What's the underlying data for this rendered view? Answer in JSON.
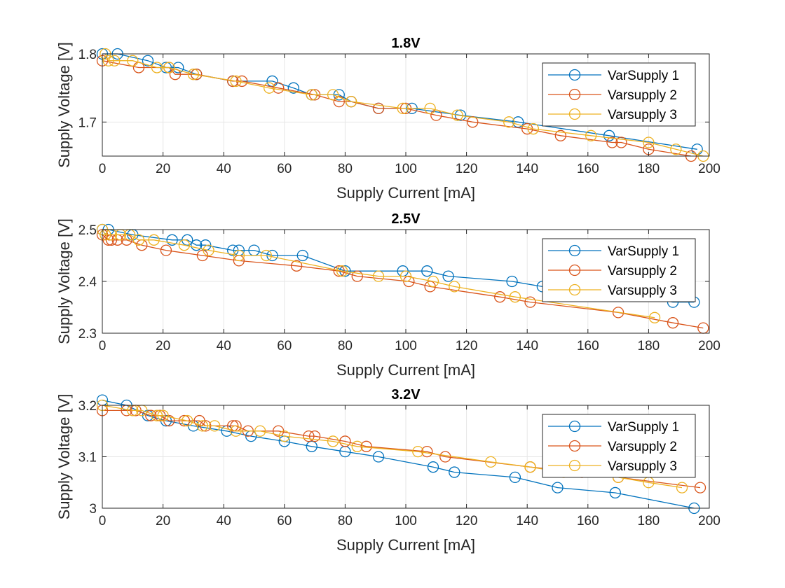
{
  "colors": {
    "series1": "#0072BD",
    "series2": "#D95319",
    "series3": "#EDB120",
    "grid": "#e6e6e6",
    "axis": "#262626"
  },
  "chart_data": [
    {
      "type": "line",
      "title": "1.8V",
      "xlabel": "Supply Current [mA]",
      "ylabel": "Supply Voltage [V]",
      "xlim": [
        0,
        200
      ],
      "ylim": [
        1.65,
        1.8
      ],
      "xticks": [
        "0",
        "20",
        "40",
        "60",
        "80",
        "100",
        "120",
        "140",
        "160",
        "180",
        "200"
      ],
      "yticks": [
        "1.7",
        "1.8"
      ],
      "grid": true,
      "legend_position": "top-right",
      "marker": "circle",
      "series": [
        {
          "name": "VarSupply 1",
          "x": [
            0,
            5,
            15,
            21,
            25,
            31,
            43,
            56,
            63,
            69,
            78,
            82,
            91,
            102,
            118,
            137,
            167,
            196
          ],
          "y": [
            1.8,
            1.8,
            1.79,
            1.78,
            1.78,
            1.77,
            1.76,
            1.76,
            1.75,
            1.74,
            1.74,
            1.73,
            1.72,
            1.72,
            1.71,
            1.7,
            1.68,
            1.66
          ]
        },
        {
          "name": "Varsupply 2",
          "x": [
            0,
            12,
            22,
            24,
            31,
            43,
            46,
            58,
            70,
            78,
            82,
            91,
            100,
            110,
            122,
            140,
            151,
            168,
            171,
            180,
            194
          ],
          "y": [
            1.79,
            1.78,
            1.78,
            1.77,
            1.77,
            1.76,
            1.76,
            1.75,
            1.74,
            1.73,
            1.73,
            1.72,
            1.72,
            1.71,
            1.7,
            1.69,
            1.68,
            1.67,
            1.67,
            1.66,
            1.65
          ]
        },
        {
          "name": "Varsupply 3",
          "x": [
            1,
            2,
            4,
            10,
            18,
            22,
            30,
            44,
            55,
            69,
            76,
            82,
            99,
            108,
            117,
            134,
            142,
            161,
            180,
            189,
            198
          ],
          "y": [
            1.8,
            1.79,
            1.79,
            1.79,
            1.78,
            1.78,
            1.77,
            1.76,
            1.75,
            1.74,
            1.74,
            1.73,
            1.72,
            1.72,
            1.71,
            1.7,
            1.69,
            1.68,
            1.67,
            1.66,
            1.65
          ]
        }
      ]
    },
    {
      "type": "line",
      "title": "2.5V",
      "xlabel": "Supply Current [mA]",
      "ylabel": "Supply Voltage [V]",
      "xlim": [
        0,
        200
      ],
      "ylim": [
        2.3,
        2.5
      ],
      "xticks": [
        "0",
        "20",
        "40",
        "60",
        "80",
        "100",
        "120",
        "140",
        "160",
        "180",
        "200"
      ],
      "yticks": [
        "2.3",
        "2.4",
        "2.5"
      ],
      "grid": true,
      "legend_position": "top-right",
      "marker": "circle",
      "series": [
        {
          "name": "VarSupply 1",
          "x": [
            0,
            2,
            10,
            23,
            28,
            31,
            34,
            43,
            45,
            50,
            56,
            66,
            80,
            99,
            107,
            114,
            135,
            145,
            170,
            188,
            195
          ],
          "y": [
            2.5,
            2.5,
            2.49,
            2.48,
            2.48,
            2.47,
            2.47,
            2.46,
            2.46,
            2.46,
            2.45,
            2.45,
            2.42,
            2.42,
            2.42,
            2.41,
            2.4,
            2.39,
            2.38,
            2.36,
            2.36
          ]
        },
        {
          "name": "Varsupply 2",
          "x": [
            0,
            2,
            3,
            5,
            8,
            13,
            21,
            33,
            45,
            64,
            78,
            84,
            101,
            108,
            131,
            141,
            170,
            188,
            198
          ],
          "y": [
            2.49,
            2.48,
            2.48,
            2.48,
            2.48,
            2.47,
            2.46,
            2.45,
            2.44,
            2.43,
            2.42,
            2.41,
            2.4,
            2.39,
            2.37,
            2.36,
            2.34,
            2.32,
            2.31
          ]
        },
        {
          "name": "Varsupply 3",
          "x": [
            0,
            1,
            3,
            6,
            9,
            12,
            17,
            27,
            35,
            45,
            54,
            79,
            91,
            100,
            109,
            116,
            136,
            182
          ],
          "y": [
            2.5,
            2.49,
            2.49,
            2.49,
            2.49,
            2.48,
            2.48,
            2.47,
            2.46,
            2.45,
            2.45,
            2.42,
            2.41,
            2.41,
            2.4,
            2.39,
            2.37,
            2.33
          ]
        }
      ]
    },
    {
      "type": "line",
      "title": "3.2V",
      "xlabel": "Supply Current [mA]",
      "ylabel": "Supply Voltage [V]",
      "xlim": [
        0,
        200
      ],
      "ylim": [
        3.0,
        3.2
      ],
      "xticks": [
        "0",
        "20",
        "40",
        "60",
        "80",
        "100",
        "120",
        "140",
        "160",
        "180",
        "200"
      ],
      "yticks": [
        "3",
        "3.1",
        "3.2"
      ],
      "grid": true,
      "legend_position": "top-right",
      "marker": "circle",
      "series": [
        {
          "name": "VarSupply 1",
          "x": [
            0,
            8,
            15,
            21,
            30,
            41,
            49,
            60,
            69,
            80,
            91,
            109,
            116,
            136,
            150,
            169,
            195
          ],
          "y": [
            3.21,
            3.2,
            3.18,
            3.17,
            3.16,
            3.15,
            3.14,
            3.13,
            3.12,
            3.11,
            3.1,
            3.08,
            3.07,
            3.06,
            3.04,
            3.03,
            3.0
          ]
        },
        {
          "name": "Varsupply 2",
          "x": [
            0,
            8,
            11,
            16,
            19,
            22,
            27,
            32,
            34,
            43,
            44,
            48,
            58,
            68,
            70,
            80,
            87,
            107,
            113,
            141,
            158,
            170,
            197
          ],
          "y": [
            3.19,
            3.19,
            3.19,
            3.18,
            3.18,
            3.17,
            3.17,
            3.17,
            3.16,
            3.16,
            3.16,
            3.15,
            3.15,
            3.14,
            3.14,
            3.13,
            3.12,
            3.11,
            3.1,
            3.08,
            3.07,
            3.06,
            3.04
          ]
        },
        {
          "name": "Varsupply 3",
          "x": [
            0,
            10,
            13,
            18,
            20,
            28,
            33,
            37,
            44,
            52,
            60,
            76,
            84,
            104,
            128,
            141,
            152,
            170,
            180,
            191
          ],
          "y": [
            3.2,
            3.19,
            3.19,
            3.18,
            3.18,
            3.17,
            3.16,
            3.16,
            3.15,
            3.15,
            3.14,
            3.13,
            3.12,
            3.11,
            3.09,
            3.08,
            3.07,
            3.06,
            3.05,
            3.04
          ]
        }
      ]
    }
  ]
}
